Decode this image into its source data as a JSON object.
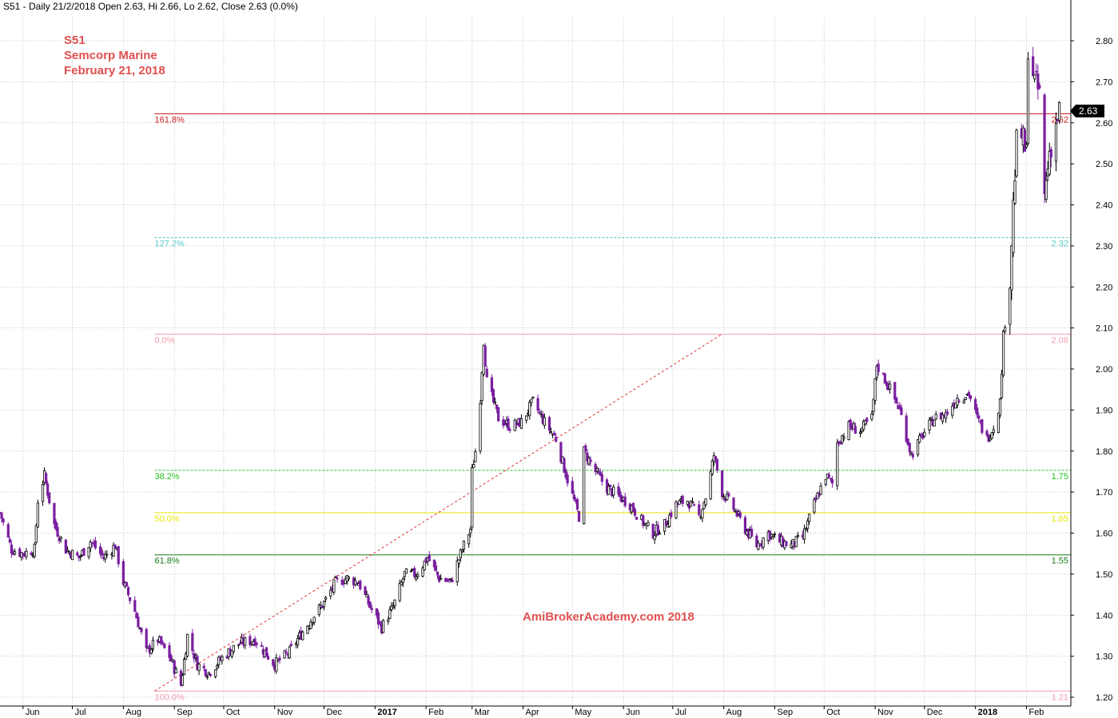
{
  "header": {
    "title": "S51 - Daily 21/2/2018 Open 2.63, Hi 2.66, Lo 2.62, Close 2.63 (0.0%)"
  },
  "annotations": {
    "symbol": "S51",
    "company": "Semcorp Marine",
    "date": "February 21, 2018",
    "watermark": "AmiBrokerAcademy.com  2018"
  },
  "colors": {
    "grid": "#b8b8b8",
    "bull_candle": "#000000",
    "bear_candle": "#7a1fa0",
    "annotation": "#e05050",
    "last_price_tag": "#000000"
  },
  "last_price": {
    "label": "2.63",
    "value": 2.63
  },
  "chart_data": {
    "type": "candlestick",
    "title": "S51 - Daily 21/2/2018 Open 2.63, Hi 2.66, Lo 2.62, Close 2.63 (0.0%)",
    "ylim": [
      1.18,
      2.84
    ],
    "y_ticks": [
      "1.20",
      "1.30",
      "1.40",
      "1.50",
      "1.60",
      "1.70",
      "1.80",
      "1.90",
      "2.00",
      "2.10",
      "2.20",
      "2.30",
      "2.40",
      "2.50",
      "2.60",
      "2.70",
      "2.80"
    ],
    "x_range": [
      "2016-05-18",
      "2018-02-28"
    ],
    "x_ticks": [
      {
        "label": "Jun",
        "date": "2016-06-01",
        "bold": false
      },
      {
        "label": "Jul",
        "date": "2016-07-01",
        "bold": false
      },
      {
        "label": "Aug",
        "date": "2016-08-01",
        "bold": false
      },
      {
        "label": "Sep",
        "date": "2016-09-01",
        "bold": false
      },
      {
        "label": "Oct",
        "date": "2016-10-01",
        "bold": false
      },
      {
        "label": "Nov",
        "date": "2016-11-01",
        "bold": false
      },
      {
        "label": "Dec",
        "date": "2016-12-01",
        "bold": false
      },
      {
        "label": "2017",
        "date": "2017-01-01",
        "bold": true
      },
      {
        "label": "Feb",
        "date": "2017-02-01",
        "bold": false
      },
      {
        "label": "Mar",
        "date": "2017-03-01",
        "bold": false
      },
      {
        "label": "Apr",
        "date": "2017-04-01",
        "bold": false
      },
      {
        "label": "May",
        "date": "2017-05-01",
        "bold": false
      },
      {
        "label": "Jun",
        "date": "2017-06-01",
        "bold": false
      },
      {
        "label": "Jul",
        "date": "2017-07-01",
        "bold": false
      },
      {
        "label": "Aug",
        "date": "2017-08-01",
        "bold": false
      },
      {
        "label": "Sep",
        "date": "2017-09-01",
        "bold": false
      },
      {
        "label": "Oct",
        "date": "2017-10-01",
        "bold": false
      },
      {
        "label": "Nov",
        "date": "2017-11-01",
        "bold": false
      },
      {
        "label": "Dec",
        "date": "2017-12-01",
        "bold": false
      },
      {
        "label": "2018",
        "date": "2018-01-01",
        "bold": true
      },
      {
        "label": "Feb",
        "date": "2018-02-01",
        "bold": false
      }
    ],
    "grid": true,
    "close_path": [
      [
        "2016-05-18",
        1.65
      ],
      [
        "2016-05-25",
        1.56
      ],
      [
        "2016-06-01",
        1.55
      ],
      [
        "2016-06-08",
        1.56
      ],
      [
        "2016-06-10",
        1.68
      ],
      [
        "2016-06-14",
        1.74
      ],
      [
        "2016-06-20",
        1.62
      ],
      [
        "2016-06-27",
        1.56
      ],
      [
        "2016-07-05",
        1.54
      ],
      [
        "2016-07-12",
        1.58
      ],
      [
        "2016-07-20",
        1.54
      ],
      [
        "2016-07-27",
        1.57
      ],
      [
        "2016-08-01",
        1.48
      ],
      [
        "2016-08-08",
        1.41
      ],
      [
        "2016-08-15",
        1.31
      ],
      [
        "2016-08-22",
        1.34
      ],
      [
        "2016-08-29",
        1.3
      ],
      [
        "2016-09-05",
        1.23
      ],
      [
        "2016-09-09",
        1.35
      ],
      [
        "2016-09-15",
        1.28
      ],
      [
        "2016-09-22",
        1.26
      ],
      [
        "2016-10-01",
        1.3
      ],
      [
        "2016-10-10",
        1.33
      ],
      [
        "2016-10-20",
        1.34
      ],
      [
        "2016-11-01",
        1.28
      ],
      [
        "2016-11-10",
        1.31
      ],
      [
        "2016-11-18",
        1.36
      ],
      [
        "2016-11-25",
        1.4
      ],
      [
        "2016-12-01",
        1.43
      ],
      [
        "2016-12-08",
        1.48
      ],
      [
        "2016-12-15",
        1.49
      ],
      [
        "2016-12-22",
        1.48
      ],
      [
        "2016-12-29",
        1.42
      ],
      [
        "2017-01-05",
        1.37
      ],
      [
        "2017-01-12",
        1.42
      ],
      [
        "2017-01-19",
        1.5
      ],
      [
        "2017-01-26",
        1.5
      ],
      [
        "2017-02-02",
        1.54
      ],
      [
        "2017-02-09",
        1.49
      ],
      [
        "2017-02-16",
        1.48
      ],
      [
        "2017-02-23",
        1.56
      ],
      [
        "2017-02-28",
        1.61
      ],
      [
        "2017-03-01",
        1.75
      ],
      [
        "2017-03-03",
        1.8
      ],
      [
        "2017-03-06",
        1.93
      ],
      [
        "2017-03-08",
        2.07
      ],
      [
        "2017-03-10",
        1.97
      ],
      [
        "2017-03-17",
        1.88
      ],
      [
        "2017-03-24",
        1.86
      ],
      [
        "2017-03-31",
        1.87
      ],
      [
        "2017-04-07",
        1.92
      ],
      [
        "2017-04-14",
        1.87
      ],
      [
        "2017-04-21",
        1.83
      ],
      [
        "2017-04-28",
        1.73
      ],
      [
        "2017-05-05",
        1.64
      ],
      [
        "2017-05-08",
        1.8
      ],
      [
        "2017-05-15",
        1.75
      ],
      [
        "2017-05-22",
        1.71
      ],
      [
        "2017-05-29",
        1.69
      ],
      [
        "2017-06-05",
        1.67
      ],
      [
        "2017-06-12",
        1.63
      ],
      [
        "2017-06-19",
        1.6
      ],
      [
        "2017-06-26",
        1.62
      ],
      [
        "2017-07-03",
        1.67
      ],
      [
        "2017-07-10",
        1.68
      ],
      [
        "2017-07-17",
        1.64
      ],
      [
        "2017-07-22",
        1.7
      ],
      [
        "2017-07-26",
        1.79
      ],
      [
        "2017-07-31",
        1.7
      ],
      [
        "2017-08-07",
        1.66
      ],
      [
        "2017-08-14",
        1.61
      ],
      [
        "2017-08-21",
        1.57
      ],
      [
        "2017-08-28",
        1.6
      ],
      [
        "2017-09-04",
        1.58
      ],
      [
        "2017-09-11",
        1.57
      ],
      [
        "2017-09-18",
        1.59
      ],
      [
        "2017-09-25",
        1.67
      ],
      [
        "2017-10-02",
        1.74
      ],
      [
        "2017-10-06",
        1.72
      ],
      [
        "2017-10-09",
        1.82
      ],
      [
        "2017-10-16",
        1.86
      ],
      [
        "2017-10-23",
        1.85
      ],
      [
        "2017-10-30",
        1.88
      ],
      [
        "2017-11-02",
        2.01
      ],
      [
        "2017-11-09",
        1.96
      ],
      [
        "2017-11-16",
        1.9
      ],
      [
        "2017-11-23",
        1.79
      ],
      [
        "2017-11-30",
        1.84
      ],
      [
        "2017-12-07",
        1.88
      ],
      [
        "2017-12-14",
        1.89
      ],
      [
        "2017-12-21",
        1.93
      ],
      [
        "2017-12-28",
        1.94
      ],
      [
        "2018-01-02",
        1.88
      ],
      [
        "2018-01-08",
        1.83
      ],
      [
        "2018-01-12",
        1.86
      ],
      [
        "2018-01-16",
        1.92
      ],
      [
        "2018-01-18",
        2.08
      ],
      [
        "2018-01-22",
        2.22
      ],
      [
        "2018-01-24",
        2.4
      ],
      [
        "2018-01-26",
        2.55
      ],
      [
        "2018-01-29",
        2.57
      ],
      [
        "2018-02-01",
        2.52
      ],
      [
        "2018-02-02",
        2.79
      ],
      [
        "2018-02-06",
        2.7
      ],
      [
        "2018-02-09",
        2.67
      ],
      [
        "2018-02-12",
        2.42
      ],
      [
        "2018-02-15",
        2.53
      ],
      [
        "2018-02-21",
        2.63
      ]
    ],
    "fibonacci": {
      "levels": [
        {
          "pct": "161.8%",
          "value_label": "2.62",
          "price": 2.622,
          "style": "solid",
          "pct_color": "#cc2020",
          "value_color": "#cc2020",
          "line_color": "#cc2020"
        },
        {
          "pct": "127.2%",
          "value_label": "2.32",
          "price": 2.32,
          "style": "dashed",
          "pct_color": "#5bc8c8",
          "value_color": "#5bc8c8",
          "line_color": "#5bc8c8"
        },
        {
          "pct": "0.0%",
          "value_label": "2.08",
          "price": 2.085,
          "style": "solid",
          "pct_color": "#f4a0b0",
          "value_color": "#f4a0b0",
          "line_color": "#f4a0b0"
        },
        {
          "pct": "38.2%",
          "value_label": "1.75",
          "price": 1.753,
          "style": "dashed",
          "pct_color": "#20c020",
          "value_color": "#20c020",
          "line_color": "#20c020"
        },
        {
          "pct": "50.0%",
          "value_label": "1.65",
          "price": 1.65,
          "style": "solid",
          "pct_color": "#e8e800",
          "value_color": "#e8e800",
          "line_color": "#e8e800"
        },
        {
          "pct": "61.8%",
          "value_label": "1.55",
          "price": 1.547,
          "style": "solid",
          "pct_color": "#1a7a1a",
          "value_color": "#1a7a1a",
          "line_color": "#1a7a1a"
        },
        {
          "pct": "100.0%",
          "value_label": "1.21",
          "price": 1.215,
          "style": "solid",
          "pct_color": "#f4a0b0",
          "value_color": "#f4a0b0",
          "line_color": "#f4a0b0"
        }
      ],
      "start_date": "2016-08-20",
      "trendline": {
        "from": [
          "2016-08-20",
          1.215
        ],
        "to": [
          "2017-07-31",
          2.085
        ],
        "color": "#e03030"
      }
    }
  }
}
